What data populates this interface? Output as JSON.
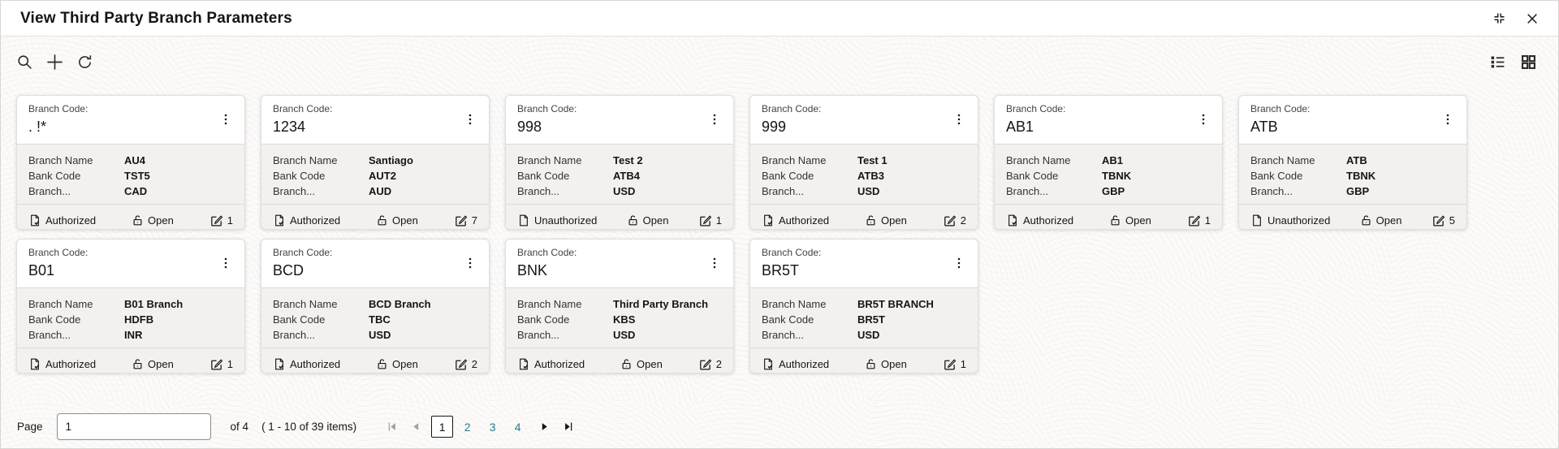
{
  "window": {
    "title": "View Third Party Branch Parameters"
  },
  "toolbar": {
    "left_icons": [
      "search-icon",
      "add-icon",
      "refresh-icon"
    ],
    "right_icons": [
      "list-view-icon",
      "grid-view-icon"
    ]
  },
  "cards": [
    {
      "code_label": "Branch Code:",
      "code": ". !*",
      "fields": [
        {
          "label": "Branch Name",
          "value": "AU4"
        },
        {
          "label": "Bank Code",
          "value": "TST5"
        },
        {
          "label": "Branch...",
          "value": "CAD"
        }
      ],
      "status": "Authorized",
      "lock_state": "Open",
      "edit_count": "1"
    },
    {
      "code_label": "Branch Code:",
      "code": "1234",
      "fields": [
        {
          "label": "Branch Name",
          "value": "Santiago"
        },
        {
          "label": "Bank Code",
          "value": "AUT2"
        },
        {
          "label": "Branch...",
          "value": "AUD"
        }
      ],
      "status": "Authorized",
      "lock_state": "Open",
      "edit_count": "7"
    },
    {
      "code_label": "Branch Code:",
      "code": "998",
      "fields": [
        {
          "label": "Branch Name",
          "value": "Test 2"
        },
        {
          "label": "Bank Code",
          "value": "ATB4"
        },
        {
          "label": "Branch...",
          "value": "USD"
        }
      ],
      "status": "Unauthorized",
      "lock_state": "Open",
      "edit_count": "1"
    },
    {
      "code_label": "Branch Code:",
      "code": "999",
      "fields": [
        {
          "label": "Branch Name",
          "value": "Test 1"
        },
        {
          "label": "Bank Code",
          "value": "ATB3"
        },
        {
          "label": "Branch...",
          "value": "USD"
        }
      ],
      "status": "Authorized",
      "lock_state": "Open",
      "edit_count": "2"
    },
    {
      "code_label": "Branch Code:",
      "code": "AB1",
      "fields": [
        {
          "label": "Branch Name",
          "value": "AB1"
        },
        {
          "label": "Bank Code",
          "value": "TBNK"
        },
        {
          "label": "Branch...",
          "value": "GBP"
        }
      ],
      "status": "Authorized",
      "lock_state": "Open",
      "edit_count": "1"
    },
    {
      "code_label": "Branch Code:",
      "code": "ATB",
      "fields": [
        {
          "label": "Branch Name",
          "value": "ATB"
        },
        {
          "label": "Bank Code",
          "value": "TBNK"
        },
        {
          "label": "Branch...",
          "value": "GBP"
        }
      ],
      "status": "Unauthorized",
      "lock_state": "Open",
      "edit_count": "5"
    },
    {
      "code_label": "Branch Code:",
      "code": "B01",
      "fields": [
        {
          "label": "Branch Name",
          "value": "B01 Branch"
        },
        {
          "label": "Bank Code",
          "value": "HDFB"
        },
        {
          "label": "Branch...",
          "value": "INR"
        }
      ],
      "status": "Authorized",
      "lock_state": "Open",
      "edit_count": "1"
    },
    {
      "code_label": "Branch Code:",
      "code": "BCD",
      "fields": [
        {
          "label": "Branch Name",
          "value": "BCD Branch"
        },
        {
          "label": "Bank Code",
          "value": "TBC"
        },
        {
          "label": "Branch...",
          "value": "USD"
        }
      ],
      "status": "Authorized",
      "lock_state": "Open",
      "edit_count": "2"
    },
    {
      "code_label": "Branch Code:",
      "code": "BNK",
      "fields": [
        {
          "label": "Branch Name",
          "value": "Third Party Branch"
        },
        {
          "label": "Bank Code",
          "value": "KBS"
        },
        {
          "label": "Branch...",
          "value": "USD"
        }
      ],
      "status": "Authorized",
      "lock_state": "Open",
      "edit_count": "2"
    },
    {
      "code_label": "Branch Code:",
      "code": "BR5T",
      "fields": [
        {
          "label": "Branch Name",
          "value": "BR5T BRANCH"
        },
        {
          "label": "Bank Code",
          "value": "BR5T"
        },
        {
          "label": "Branch...",
          "value": "USD"
        }
      ],
      "status": "Authorized",
      "lock_state": "Open",
      "edit_count": "1"
    }
  ],
  "pagination": {
    "page_label": "Page",
    "page_value": "1",
    "of_text": "of 4",
    "items_text": "( 1 - 10 of 39 items)",
    "pages": [
      {
        "label": "1",
        "current": true
      },
      {
        "label": "2",
        "current": false
      },
      {
        "label": "3",
        "current": false
      },
      {
        "label": "4",
        "current": false
      }
    ]
  },
  "colors": {
    "accent_teal": "#2a7a8d",
    "text": "#161513",
    "card_body_bg": "#f2f1ef",
    "disabled_gray": "#a3a19e"
  }
}
